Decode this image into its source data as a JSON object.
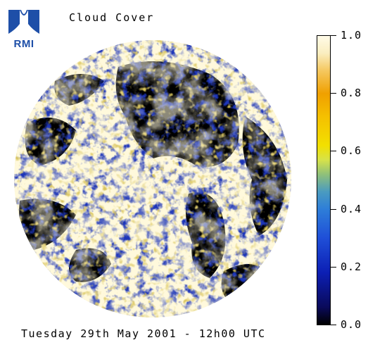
{
  "title": "Cloud Cover",
  "footer_date": "Tuesday 29th May 2001 - 12h00 UTC",
  "logo": {
    "text": "RMI",
    "color": "#1e4fa8"
  },
  "colorbar": {
    "min": 0.0,
    "max": 1.0,
    "ticks": [
      {
        "value": 1.0,
        "label": "1.0"
      },
      {
        "value": 0.8,
        "label": "0.8"
      },
      {
        "value": 0.6,
        "label": "0.6"
      },
      {
        "value": 0.4,
        "label": "0.4"
      },
      {
        "value": 0.2,
        "label": "0.2"
      },
      {
        "value": 0.0,
        "label": "0.0"
      }
    ],
    "colors": [
      "#000000",
      "#0c1fb4",
      "#2e7ed8",
      "#f2e000",
      "#f0a000",
      "#fffbe8"
    ]
  },
  "earth_palette": {
    "clear": "#000000",
    "cloud_low": "#1d35b8",
    "cloud_mid": "#d9c45a",
    "cloud_full": "#fff9dc"
  }
}
